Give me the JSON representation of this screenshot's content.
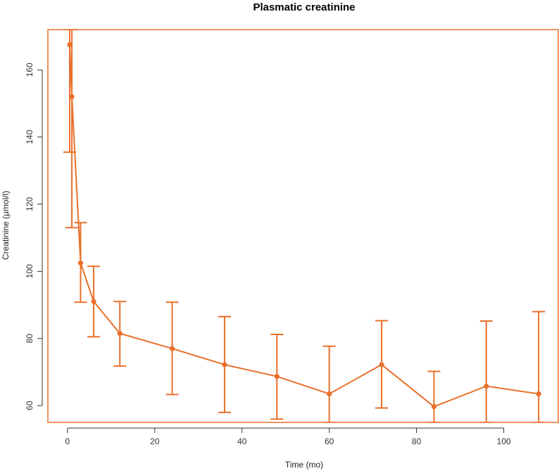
{
  "chart_data": {
    "type": "line",
    "title": "Plasmatic creatinine",
    "xlabel": "Time (mo)",
    "ylabel": "Creatinine (µmol/l)",
    "xlim": [
      -4.5,
      112.5
    ],
    "ylim": [
      55,
      172
    ],
    "x_ticks": [
      0,
      20,
      40,
      60,
      80,
      100
    ],
    "y_ticks": [
      60,
      80,
      100,
      120,
      140,
      160
    ],
    "grid": false,
    "legend": "none",
    "color": "#e8702a",
    "series": [
      {
        "x": [
          0.5,
          1,
          3,
          6,
          12,
          24,
          36,
          48,
          60,
          72,
          84,
          96,
          108
        ],
        "y": [
          167.5,
          152,
          102.5,
          91,
          81.5,
          77,
          72.2,
          68.7,
          63.5,
          72.2,
          59.7,
          65.8,
          63.5
        ],
        "error_low": [
          135.5,
          113,
          90.8,
          80.5,
          71.8,
          63.3,
          58,
          56,
          55,
          59.3,
          55,
          55,
          55
        ],
        "error_high": [
          172,
          172,
          114.5,
          101.5,
          91,
          90.8,
          86.5,
          81.2,
          77.7,
          85.3,
          70.2,
          85.2,
          88
        ]
      }
    ]
  }
}
